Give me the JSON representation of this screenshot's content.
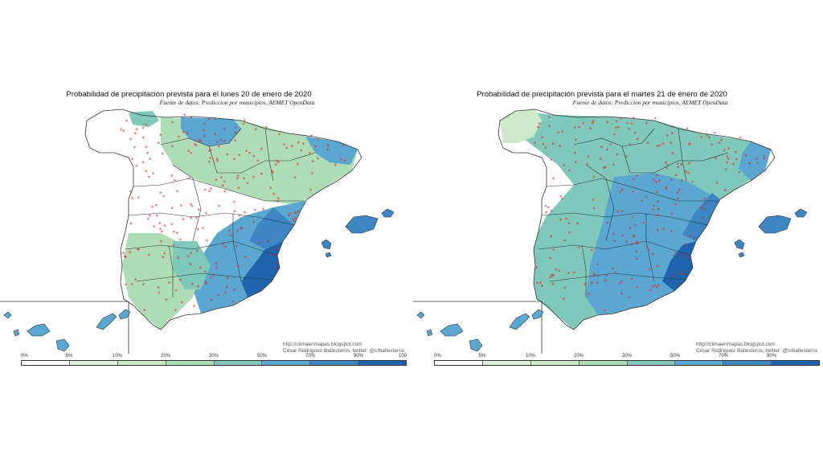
{
  "maps": [
    {
      "title": "Probabilidad de precipitación prevista para el lunes 20 de enero de 2020",
      "subtitle": "Fuente de datos: Prediccion por municipios. AEMET OpenData",
      "credit_url": "http://climaenmapas.blogspot.com",
      "credit_author": "César Rodríguez Ballesteros, twitter: @crballesteros"
    },
    {
      "title": "Probabilidad de precipitación prevista para el martes 21 de enero de 2020",
      "subtitle": "Fuente de datos: Prediccion por municipios. AEMET OpenData",
      "credit_url": "http://climaenmapas.blogspot.com",
      "credit_author": "César Rodríguez Ballesteros, twitter: @crballesteros"
    }
  ],
  "legend": {
    "labels_left": [
      "0%",
      "5%",
      "10%",
      "20%",
      "30%",
      "50%",
      "70%",
      "90%",
      "100"
    ],
    "labels_right": [
      "0%",
      "5%",
      "10%",
      "20%",
      "30%",
      "50%",
      "70%",
      "90%"
    ],
    "colors": [
      "#ffffff",
      "#e4f3e0",
      "#cdeac8",
      "#aedcb5",
      "#7fc8ba",
      "#5aa8d2",
      "#3c86c4",
      "#1f65ad"
    ]
  }
}
